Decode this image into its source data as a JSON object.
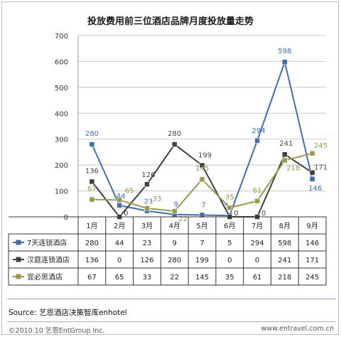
{
  "title": "投放费用前三位酒店品牌月度投放量走势",
  "source": "Source: 艺恩酒店决策智库enhotel",
  "footer": {
    "left": "©2010.10 艺恩EntGroup Inc.",
    "right": "www.entravel.com.cn"
  },
  "colors": {
    "s1": "#3d6fb6",
    "s2": "#404040",
    "s3": "#9a9a4a"
  },
  "chart_data": {
    "type": "line",
    "categories": [
      "1月",
      "2月",
      "3月",
      "4月",
      "5月",
      "6月",
      "7月",
      "8月",
      "9月"
    ],
    "ylim": [
      0,
      700
    ],
    "yticks": [
      0,
      100,
      200,
      300,
      400,
      500,
      600,
      700
    ],
    "grid": true,
    "series": [
      {
        "name": "7天连锁酒店",
        "values": [
          280,
          44,
          23,
          9,
          7,
          5,
          294,
          598,
          146
        ]
      },
      {
        "name": "汉庭连锁酒店",
        "values": [
          136,
          0,
          126,
          280,
          199,
          0,
          0,
          241,
          171
        ]
      },
      {
        "name": "宜必思酒店",
        "values": [
          67,
          65,
          33,
          22,
          145,
          35,
          61,
          218,
          245
        ]
      }
    ]
  }
}
